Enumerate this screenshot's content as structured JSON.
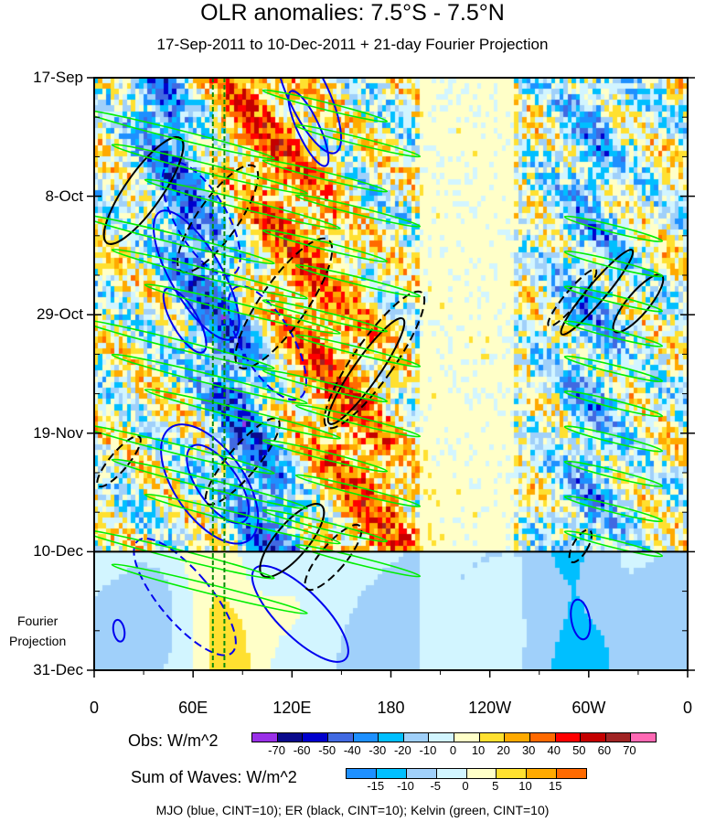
{
  "chart_data": {
    "type": "heatmap",
    "title": "OLR anomalies: 7.5°S - 7.5°N",
    "subtitle": "17-Sep-2011 to 10-Dec-2011 + 21-day Fourier Projection",
    "x_ticks": [
      "0",
      "60E",
      "120E",
      "180",
      "120W",
      "60W",
      "0"
    ],
    "x_tick_values": [
      0,
      60,
      120,
      180,
      240,
      300,
      360
    ],
    "xlim": [
      0,
      360
    ],
    "y_ticks": [
      "17-Sep",
      "8-Oct",
      "29-Oct",
      "19-Nov",
      "10-Dec",
      "31-Dec"
    ],
    "y_tick_days": [
      0,
      21,
      42,
      63,
      84,
      105
    ],
    "ylim_days": [
      0,
      105
    ],
    "projection_label": "Fourier\nProjection",
    "projection_start_day": 84,
    "reference_lons": [
      72,
      79
    ],
    "obs_colorbar": {
      "label": "Obs: W/m^2",
      "levels": [
        "-70",
        "-60",
        "-50",
        "-40",
        "-30",
        "-20",
        "-10",
        "0",
        "10",
        "20",
        "30",
        "40",
        "50",
        "60",
        "70"
      ],
      "colors": [
        "#9a30e8",
        "#0a0a8c",
        "#0000cd",
        "#4169e1",
        "#1e90ff",
        "#00bfff",
        "#a0d0fa",
        "#d2f5ff",
        "#ffffc8",
        "#ffe030",
        "#ffaa00",
        "#ff6a00",
        "#ff0000",
        "#c40000",
        "#a02424",
        "#ff69b4"
      ]
    },
    "waves_colorbar": {
      "label": "Sum of Waves: W/m^2",
      "levels": [
        "-15",
        "-10",
        "-5",
        "0",
        "5",
        "10",
        "15"
      ],
      "colors": [
        "#1e90ff",
        "#00bfff",
        "#a0d0fa",
        "#d2f5ff",
        "#ffffc8",
        "#ffe030",
        "#ffaa00",
        "#ff6a00"
      ]
    },
    "footer": "MJO (blue, CINT=10); ER (black, CINT=10); Kelvin (green, CINT=10)",
    "contour_colors": {
      "mjo": "#0000ee",
      "er": "#000000",
      "kelvin": "#00ee00"
    }
  }
}
